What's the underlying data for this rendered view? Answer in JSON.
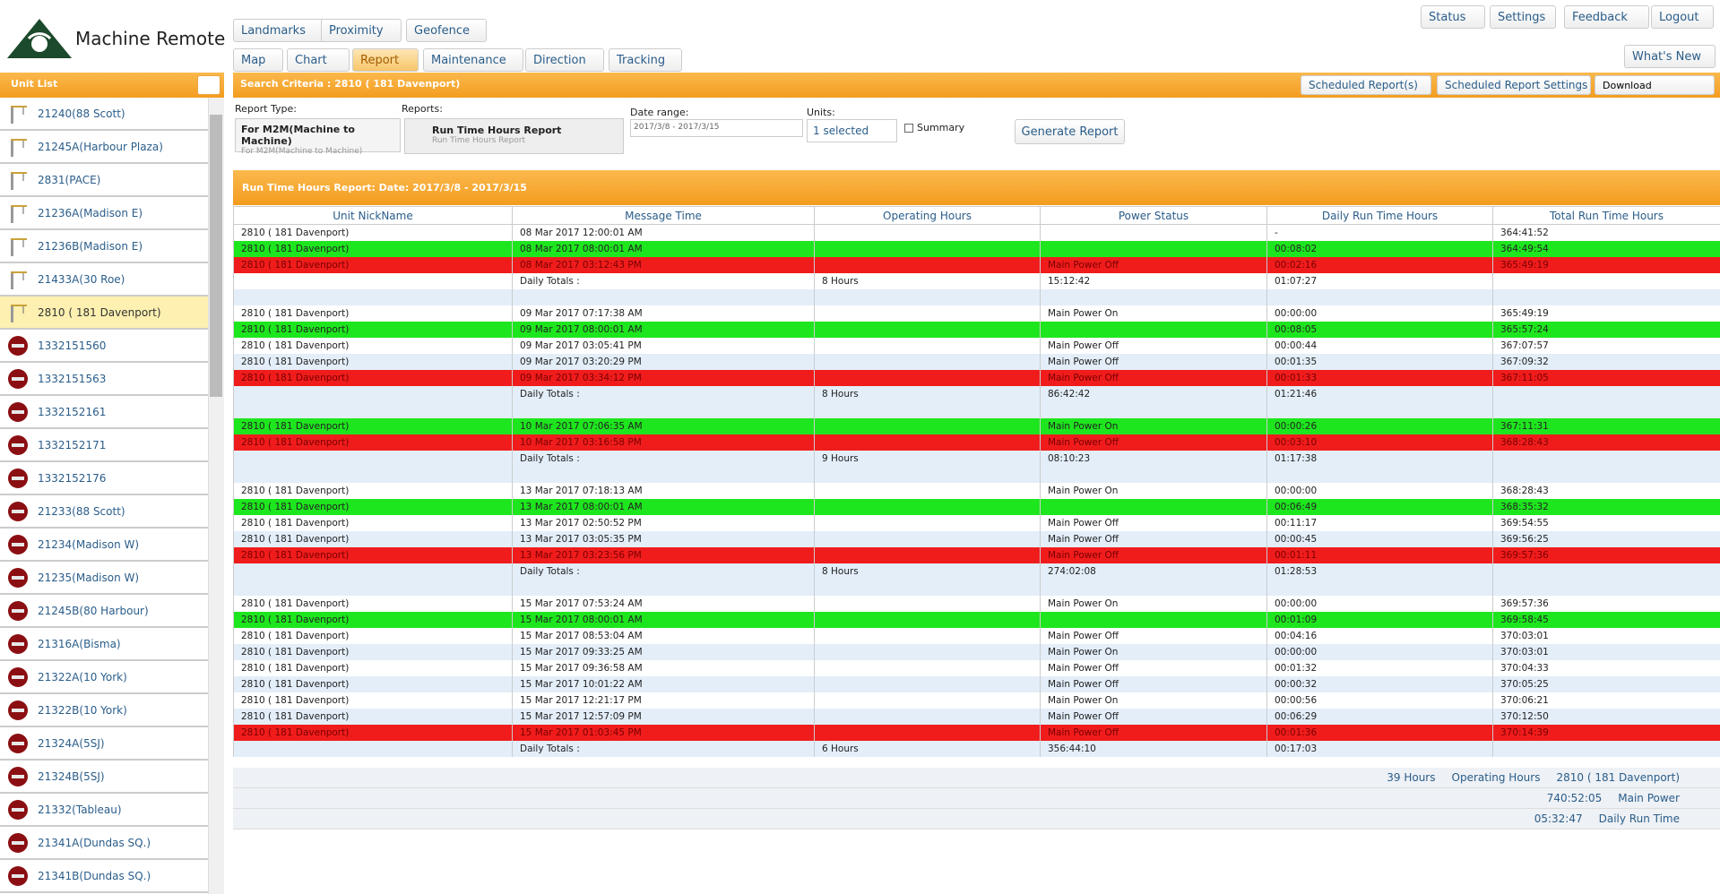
{
  "header": {
    "logo": "Machine Remote",
    "tabs_top": [
      "Landmarks",
      "Proximity",
      "Geofence"
    ],
    "tabs_main": [
      "Map",
      "Chart",
      "Report",
      "Maintenance",
      "Direction",
      "Tracking"
    ],
    "active_tab": 2,
    "right_buttons": [
      "Status",
      "Settings",
      "Feedback",
      "Logout"
    ],
    "whats_new": "What's New"
  },
  "sidebar": {
    "title": "Unit List",
    "selected": 6,
    "units": [
      {
        "name": "21240(88 Scott)",
        "icon": "crane"
      },
      {
        "name": "21245A(Harbour Plaza)",
        "icon": "crane"
      },
      {
        "name": "2831(PACE)",
        "icon": "crane"
      },
      {
        "name": "21236A(Madison E)",
        "icon": "crane"
      },
      {
        "name": "21236B(Madison E)",
        "icon": "crane"
      },
      {
        "name": "21433A(30 Roe)",
        "icon": "crane"
      },
      {
        "name": "2810 ( 181 Davenport)",
        "icon": "crane"
      },
      {
        "name": "1332151560",
        "icon": "unit"
      },
      {
        "name": "1332151563",
        "icon": "unit"
      },
      {
        "name": "1332152161",
        "icon": "unit"
      },
      {
        "name": "1332152171",
        "icon": "unit"
      },
      {
        "name": "1332152176",
        "icon": "unit"
      },
      {
        "name": "21233(88 Scott)",
        "icon": "unit"
      },
      {
        "name": "21234(Madison W)",
        "icon": "unit"
      },
      {
        "name": "21235(Madison W)",
        "icon": "unit"
      },
      {
        "name": "21245B(80 Harbour)",
        "icon": "unit"
      },
      {
        "name": "21316A(Bisma)",
        "icon": "unit"
      },
      {
        "name": "21322A(10 York)",
        "icon": "unit"
      },
      {
        "name": "21322B(10 York)",
        "icon": "unit"
      },
      {
        "name": "21324A(5SJ)",
        "icon": "unit"
      },
      {
        "name": "21324B(5SJ)",
        "icon": "unit"
      },
      {
        "name": "21332(Tableau)",
        "icon": "unit"
      },
      {
        "name": "21341A(Dundas SQ.)",
        "icon": "unit"
      },
      {
        "name": "21341B(Dundas SQ.)",
        "icon": "unit"
      }
    ]
  },
  "criteria": {
    "title": "Search Criteria : 2810 ( 181 Davenport)",
    "buttons": [
      "Scheduled Report(s)",
      "Scheduled Report Settings"
    ],
    "download": "Download"
  },
  "form": {
    "report_type_label": "Report Type:",
    "report_type": "For M2M(Machine to Machine)",
    "report_type_sub": "For M2M(Machine to Machine)",
    "reports_label": "Reports:",
    "report": "Run Time Hours Report",
    "report_sub": "Run Time Hours Report",
    "date_label": "Date range:",
    "date": "2017/3/8 - 2017/3/15",
    "units_label": "Units:",
    "units": "1 selected",
    "summary": "Summary",
    "generate": "Generate Report"
  },
  "table": {
    "title": "Run Time Hours Report: Date: 2017/3/8 - 2017/3/15",
    "columns": [
      "Unit NickName",
      "Message Time",
      "Operating Hours",
      "Power Status",
      "Daily Run Time Hours",
      "Total Run Time Hours"
    ],
    "rows": [
      {
        "style": "white",
        "cells": [
          "2810 ( 181 Davenport)",
          "08 Mar 2017 12:00:01 AM",
          null,
          null,
          "-",
          "364:41:52"
        ]
      },
      {
        "style": "green",
        "cells": [
          "2810 ( 181 Davenport)",
          "08 Mar 2017 08:00:01 AM",
          null,
          null,
          "00:08:02",
          "364:49:54"
        ]
      },
      {
        "style": "red",
        "cells": [
          "2810 ( 181 Davenport)",
          "08 Mar 2017 03:12:43 PM",
          null,
          "Main Power Off",
          "00:02:16",
          "365:49:19"
        ]
      },
      {
        "style": "white",
        "cells": [
          null,
          "Daily Totals :",
          "8 Hours",
          "15:12:42",
          "01:07:27",
          null
        ]
      },
      {
        "style": "blank"
      },
      {
        "style": "white",
        "cells": [
          "2810 ( 181 Davenport)",
          "09 Mar 2017 07:17:38 AM",
          null,
          "Main Power On",
          "00:00:00",
          "365:49:19"
        ]
      },
      {
        "style": "green",
        "cells": [
          "2810 ( 181 Davenport)",
          "09 Mar 2017 08:00:01 AM",
          null,
          null,
          "00:08:05",
          "365:57:24"
        ]
      },
      {
        "style": "white",
        "cells": [
          "2810 ( 181 Davenport)",
          "09 Mar 2017 03:05:41 PM",
          null,
          "Main Power Off",
          "00:00:44",
          "367:07:57"
        ]
      },
      {
        "style": "light",
        "cells": [
          "2810 ( 181 Davenport)",
          "09 Mar 2017 03:20:29 PM",
          null,
          "Main Power Off",
          "00:01:35",
          "367:09:32"
        ]
      },
      {
        "style": "red",
        "cells": [
          "2810 ( 181 Davenport)",
          "09 Mar 2017 03:34:12 PM",
          null,
          "Main Power Off",
          "00:01:33",
          "367:11:05"
        ]
      },
      {
        "style": "light",
        "cells": [
          null,
          "Daily Totals :",
          "8 Hours",
          "86:42:42",
          "01:21:46",
          null
        ]
      },
      {
        "style": "blank"
      },
      {
        "style": "green",
        "cells": [
          "2810 ( 181 Davenport)",
          "10 Mar 2017 07:06:35 AM",
          null,
          "Main Power On",
          "00:00:26",
          "367:11:31"
        ]
      },
      {
        "style": "red",
        "cells": [
          "2810 ( 181 Davenport)",
          "10 Mar 2017 03:16:58 PM",
          null,
          "Main Power Off",
          "00:03:10",
          "368:28:43"
        ]
      },
      {
        "style": "light",
        "cells": [
          null,
          "Daily Totals :",
          "9 Hours",
          "08:10:23",
          "01:17:38",
          null
        ]
      },
      {
        "style": "blank"
      },
      {
        "style": "white",
        "cells": [
          "2810 ( 181 Davenport)",
          "13 Mar 2017 07:18:13 AM",
          null,
          "Main Power On",
          "00:00:00",
          "368:28:43"
        ]
      },
      {
        "style": "green",
        "cells": [
          "2810 ( 181 Davenport)",
          "13 Mar 2017 08:00:01 AM",
          null,
          null,
          "00:06:49",
          "368:35:32"
        ]
      },
      {
        "style": "white",
        "cells": [
          "2810 ( 181 Davenport)",
          "13 Mar 2017 02:50:52 PM",
          null,
          "Main Power Off",
          "00:11:17",
          "369:54:55"
        ]
      },
      {
        "style": "light",
        "cells": [
          "2810 ( 181 Davenport)",
          "13 Mar 2017 03:05:35 PM",
          null,
          "Main Power Off",
          "00:00:45",
          "369:56:25"
        ]
      },
      {
        "style": "red",
        "cells": [
          "2810 ( 181 Davenport)",
          "13 Mar 2017 03:23:56 PM",
          null,
          "Main Power Off",
          "00:01:11",
          "369:57:36"
        ]
      },
      {
        "style": "light",
        "cells": [
          null,
          "Daily Totals :",
          "8 Hours",
          "274:02:08",
          "01:28:53",
          null
        ]
      },
      {
        "style": "blank"
      },
      {
        "style": "white",
        "cells": [
          "2810 ( 181 Davenport)",
          "15 Mar 2017 07:53:24 AM",
          null,
          "Main Power On",
          "00:00:00",
          "369:57:36"
        ]
      },
      {
        "style": "green",
        "cells": [
          "2810 ( 181 Davenport)",
          "15 Mar 2017 08:00:01 AM",
          null,
          null,
          "00:01:09",
          "369:58:45"
        ]
      },
      {
        "style": "white",
        "cells": [
          "2810 ( 181 Davenport)",
          "15 Mar 2017 08:53:04 AM",
          null,
          "Main Power Off",
          "00:04:16",
          "370:03:01"
        ]
      },
      {
        "style": "light",
        "cells": [
          "2810 ( 181 Davenport)",
          "15 Mar 2017 09:33:25 AM",
          null,
          "Main Power On",
          "00:00:00",
          "370:03:01"
        ]
      },
      {
        "style": "white",
        "cells": [
          "2810 ( 181 Davenport)",
          "15 Mar 2017 09:36:58 AM",
          null,
          "Main Power Off",
          "00:01:32",
          "370:04:33"
        ]
      },
      {
        "style": "light",
        "cells": [
          "2810 ( 181 Davenport)",
          "15 Mar 2017 10:01:22 AM",
          null,
          "Main Power Off",
          "00:00:32",
          "370:05:25"
        ]
      },
      {
        "style": "white",
        "cells": [
          "2810 ( 181 Davenport)",
          "15 Mar 2017 12:21:17 PM",
          null,
          "Main Power On",
          "00:00:56",
          "370:06:21"
        ]
      },
      {
        "style": "light",
        "cells": [
          "2810 ( 181 Davenport)",
          "15 Mar 2017 12:57:09 PM",
          null,
          "Main Power Off",
          "00:06:29",
          "370:12:50"
        ]
      },
      {
        "style": "red",
        "cells": [
          "2810 ( 181 Davenport)",
          "15 Mar 2017 01:03:45 PM",
          null,
          "Main Power Off",
          "00:01:36",
          "370:14:39"
        ]
      },
      {
        "style": "light",
        "cells": [
          null,
          "Daily Totals :",
          "6 Hours",
          "356:44:10",
          "00:17:03",
          null
        ]
      }
    ]
  },
  "summary": [
    [
      "39 Hours",
      "Operating Hours",
      "2810 ( 181 Davenport)"
    ],
    [
      "740:52:05",
      "Main Power"
    ],
    [
      "05:32:47",
      "Daily Run Time"
    ]
  ]
}
